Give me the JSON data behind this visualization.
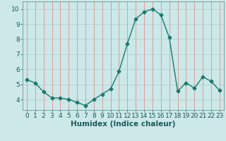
{
  "x": [
    0,
    1,
    2,
    3,
    4,
    5,
    6,
    7,
    8,
    9,
    10,
    11,
    12,
    13,
    14,
    15,
    16,
    17,
    18,
    19,
    20,
    21,
    22,
    23
  ],
  "y": [
    5.3,
    5.1,
    4.5,
    4.1,
    4.1,
    4.0,
    3.8,
    3.6,
    4.0,
    4.35,
    4.7,
    5.85,
    7.7,
    9.35,
    9.8,
    10.0,
    9.6,
    8.1,
    4.55,
    5.1,
    4.75,
    5.5,
    5.2,
    4.6
  ],
  "line_color": "#1a7a6e",
  "marker": "D",
  "marker_size": 2.5,
  "bg_color": "#cce8e8",
  "grid_color_v": "#e08080",
  "grid_color_h": "#b0cccc",
  "xlabel": "Humidex (Indice chaleur)",
  "xlim": [
    -0.5,
    23.5
  ],
  "ylim": [
    3.3,
    10.5
  ],
  "yticks": [
    4,
    5,
    6,
    7,
    8,
    9,
    10
  ],
  "xticks": [
    0,
    1,
    2,
    3,
    4,
    5,
    6,
    7,
    8,
    9,
    10,
    11,
    12,
    13,
    14,
    15,
    16,
    17,
    18,
    19,
    20,
    21,
    22,
    23
  ],
  "tick_font_size": 6.5,
  "xlabel_font_size": 7.5
}
